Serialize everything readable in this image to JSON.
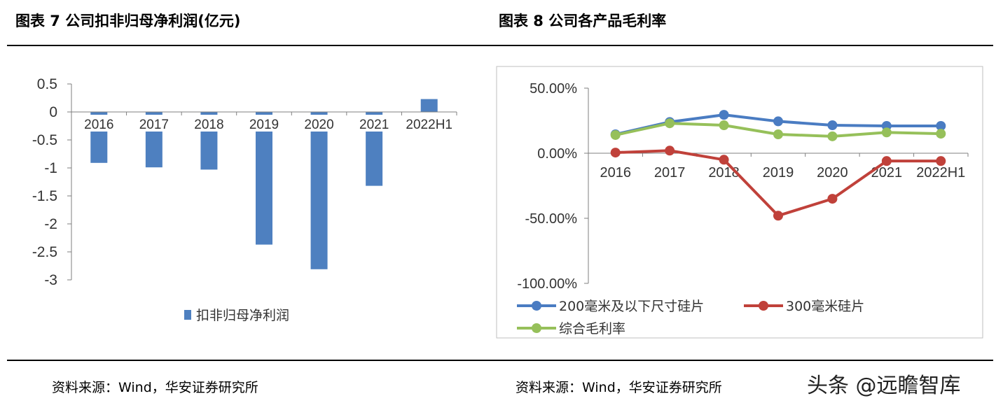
{
  "titles": {
    "left": "图表 7 公司扣非归母净利润(亿元)",
    "right": "图表 8 公司各产品毛利率"
  },
  "sources": {
    "left": "资料来源：Wind，华安证券研究所",
    "right": "资料来源：Wind，华安证券研究所"
  },
  "watermark": "头条 @远瞻智库",
  "chart_data": [
    {
      "type": "bar",
      "categories": [
        "2016",
        "2017",
        "2018",
        "2019",
        "2020",
        "2021",
        "2022H1"
      ],
      "series": [
        {
          "name": "扣非归母净利润",
          "values": [
            -0.91,
            -0.99,
            -1.03,
            -2.37,
            -2.81,
            -1.32,
            0.23
          ],
          "color": "#4e80c0"
        }
      ],
      "ylim": [
        -3,
        0.5
      ],
      "yticks": [
        "0.5",
        "0",
        "-0.5",
        "-1",
        "-1.5",
        "-2",
        "-2.5",
        "-3"
      ],
      "legend_position": "bottom"
    },
    {
      "type": "line",
      "categories": [
        "2016",
        "2017",
        "2018",
        "2019",
        "2020",
        "2021",
        "2022H1"
      ],
      "series": [
        {
          "name": "200毫米及以下尺寸硅片",
          "values": [
            14.5,
            24.0,
            29.5,
            24.5,
            21.5,
            21.0,
            21.0
          ],
          "color": "#4a7cc2"
        },
        {
          "name": "300毫米硅片",
          "values": [
            0.5,
            2.0,
            -5.0,
            -48.0,
            -35.0,
            -6.0,
            -6.0
          ],
          "color": "#c0413a"
        },
        {
          "name": "综合毛利率",
          "values": [
            14.0,
            23.0,
            21.5,
            14.5,
            13.0,
            16.0,
            15.0
          ],
          "color": "#96c05a"
        }
      ],
      "ylim": [
        -100,
        50
      ],
      "yticks": [
        "50.00%",
        "0.00%",
        "-50.00%",
        "-100.00%"
      ],
      "legend_position": "bottom"
    }
  ]
}
